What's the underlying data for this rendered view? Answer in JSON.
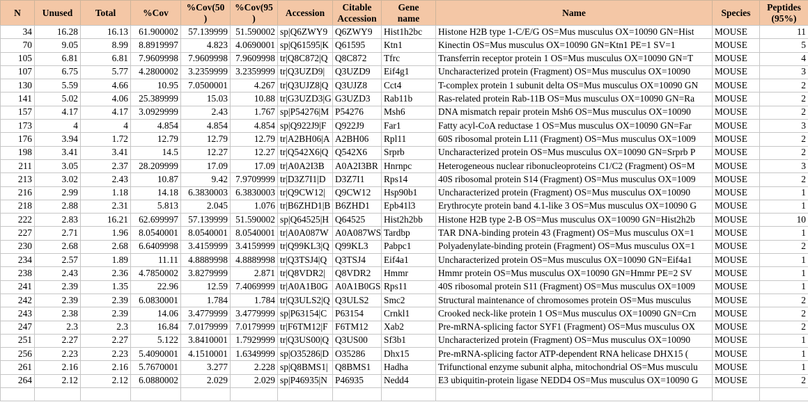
{
  "table": {
    "columns": [
      {
        "key": "n",
        "label": "N",
        "align": "num"
      },
      {
        "key": "unused",
        "label": "Unused",
        "align": "num"
      },
      {
        "key": "total",
        "label": "Total",
        "align": "num"
      },
      {
        "key": "cov",
        "label": "%Cov",
        "align": "num"
      },
      {
        "key": "cov50",
        "label": "%Cov(50\n)",
        "align": "num"
      },
      {
        "key": "cov95",
        "label": "%Cov(95\n)",
        "align": "num"
      },
      {
        "key": "accession",
        "label": "Accession",
        "align": "txt"
      },
      {
        "key": "citable-accession",
        "label": "Citable\nAccession",
        "align": "txt"
      },
      {
        "key": "gene-name",
        "label": "Gene\nname",
        "align": "txt"
      },
      {
        "key": "name",
        "label": "Name",
        "align": "txt"
      },
      {
        "key": "species",
        "label": "Species",
        "align": "txt"
      },
      {
        "key": "peptides-95",
        "label": "Peptides\n(95%)",
        "align": "num"
      }
    ],
    "rows": [
      [
        "34",
        "16.28",
        "16.13",
        "61.900002",
        "57.139999",
        "51.590002",
        "sp|Q6ZWY9",
        "Q6ZWY9",
        "Hist1h2bc",
        "Histone H2B type 1-C/E/G OS=Mus musculus OX=10090 GN=Hist",
        "MOUSE",
        "11"
      ],
      [
        "70",
        "9.05",
        "8.99",
        "8.8919997",
        "4.823",
        "4.0690001",
        "sp|Q61595|K",
        "Q61595",
        "Ktn1",
        "Kinectin OS=Mus musculus OX=10090 GN=Ktn1 PE=1 SV=1",
        "MOUSE",
        "5"
      ],
      [
        "105",
        "6.81",
        "6.81",
        "7.9609998",
        "7.9609998",
        "7.9609998",
        "tr|Q8C872|Q",
        "Q8C872",
        "Tfrc",
        "Transferrin receptor protein 1 OS=Mus musculus OX=10090 GN=T",
        "MOUSE",
        "4"
      ],
      [
        "107",
        "6.75",
        "5.77",
        "4.2800002",
        "3.2359999",
        "3.2359999",
        "tr|Q3UZD9|",
        "Q3UZD9",
        "Eif4g1",
        "Uncharacterized protein (Fragment) OS=Mus musculus OX=10090",
        "MOUSE",
        "3"
      ],
      [
        "130",
        "5.59",
        "4.66",
        "10.95",
        "7.0500001",
        "4.267",
        "tr|Q3UJZ8|Q",
        "Q3UJZ8",
        "Cct4",
        "T-complex protein 1 subunit delta OS=Mus musculus OX=10090 GN",
        "MOUSE",
        "2"
      ],
      [
        "141",
        "5.02",
        "4.06",
        "25.389999",
        "15.03",
        "10.88",
        "tr|G3UZD3|G",
        "G3UZD3",
        "Rab11b",
        "Ras-related protein Rab-11B OS=Mus musculus OX=10090 GN=Ra",
        "MOUSE",
        "2"
      ],
      [
        "157",
        "4.17",
        "4.17",
        "3.0929999",
        "2.43",
        "1.767",
        "sp|P54276|M",
        "P54276",
        "Msh6",
        "DNA mismatch repair protein Msh6 OS=Mus musculus OX=10090",
        "MOUSE",
        "2"
      ],
      [
        "173",
        "4",
        "4",
        "4.854",
        "4.854",
        "4.854",
        "sp|Q922J9|F",
        "Q922J9",
        "Far1",
        "Fatty acyl-CoA reductase 1 OS=Mus musculus OX=10090 GN=Far",
        "MOUSE",
        "3"
      ],
      [
        "176",
        "3.94",
        "1.72",
        "12.79",
        "12.79",
        "12.79",
        "tr|A2BH06|A",
        "A2BH06",
        "Rpl11",
        "60S ribosomal protein L11 (Fragment) OS=Mus musculus OX=1009",
        "MOUSE",
        "2"
      ],
      [
        "198",
        "3.41",
        "3.41",
        "14.5",
        "12.27",
        "12.27",
        "tr|Q542X6|Q",
        "Q542X6",
        "Srprb",
        "Uncharacterized protein OS=Mus musculus OX=10090 GN=Srprb P",
        "MOUSE",
        "2"
      ],
      [
        "211",
        "3.05",
        "2.37",
        "28.209999",
        "17.09",
        "17.09",
        "tr|A0A2I3B",
        "A0A2I3BR",
        "Hnrnpc",
        "Heterogeneous nuclear ribonucleoproteins C1/C2 (Fragment) OS=M",
        "MOUSE",
        "3"
      ],
      [
        "213",
        "3.02",
        "2.43",
        "10.87",
        "9.42",
        "7.9709999",
        "tr|D3Z7I1|D",
        "D3Z7I1",
        "Rps14",
        "40S ribosomal protein S14 (Fragment) OS=Mus musculus OX=1009",
        "MOUSE",
        "2"
      ],
      [
        "216",
        "2.99",
        "1.18",
        "14.18",
        "6.3830003",
        "6.3830003",
        "tr|Q9CW12|",
        "Q9CW12",
        "Hsp90b1",
        "Uncharacterized protein (Fragment) OS=Mus musculus OX=10090",
        "MOUSE",
        "1"
      ],
      [
        "218",
        "2.88",
        "2.31",
        "5.813",
        "2.045",
        "1.076",
        "tr|B6ZHD1|B",
        "B6ZHD1",
        "Epb41l3",
        "Erythrocyte protein band 4.1-like 3 OS=Mus musculus OX=10090 G",
        "MOUSE",
        "1"
      ],
      [
        "222",
        "2.83",
        "16.21",
        "62.699997",
        "57.139999",
        "51.590002",
        "sp|Q64525|H",
        "Q64525",
        "Hist2h2bb",
        "Histone H2B type 2-B OS=Mus musculus OX=10090 GN=Hist2h2b",
        "MOUSE",
        "10"
      ],
      [
        "227",
        "2.71",
        "1.96",
        "8.0540001",
        "8.0540001",
        "8.0540001",
        "tr|A0A087W",
        "A0A087WS",
        "Tardbp",
        "TAR DNA-binding protein 43 (Fragment) OS=Mus musculus OX=1",
        "MOUSE",
        "1"
      ],
      [
        "230",
        "2.68",
        "2.68",
        "6.6409998",
        "3.4159999",
        "3.4159999",
        "tr|Q99KL3|Q",
        "Q99KL3",
        "Pabpc1",
        "Polyadenylate-binding protein (Fragment) OS=Mus musculus OX=1",
        "MOUSE",
        "2"
      ],
      [
        "234",
        "2.57",
        "1.89",
        "11.11",
        "4.8889998",
        "4.8889998",
        "tr|Q3TSJ4|Q",
        "Q3TSJ4",
        "Eif4a1",
        "Uncharacterized protein OS=Mus musculus OX=10090 GN=Eif4a1",
        "MOUSE",
        "1"
      ],
      [
        "238",
        "2.43",
        "2.36",
        "4.7850002",
        "3.8279999",
        "2.871",
        "tr|Q8VDR2|",
        "Q8VDR2",
        "Hmmr",
        "Hmmr protein OS=Mus musculus OX=10090 GN=Hmmr PE=2 SV",
        "MOUSE",
        "1"
      ],
      [
        "241",
        "2.39",
        "1.35",
        "22.96",
        "12.59",
        "7.4069999",
        "tr|A0A1B0G",
        "A0A1B0GS",
        "Rps11",
        "40S ribosomal protein S11 (Fragment) OS=Mus musculus OX=1009",
        "MOUSE",
        "1"
      ],
      [
        "242",
        "2.39",
        "2.39",
        "6.0830001",
        "1.784",
        "1.784",
        "tr|Q3ULS2|Q",
        "Q3ULS2",
        "Smc2",
        "Structural maintenance of chromosomes protein OS=Mus musculus",
        "MOUSE",
        "2"
      ],
      [
        "243",
        "2.38",
        "2.39",
        "14.06",
        "3.4779999",
        "3.4779999",
        "sp|P63154|C",
        "P63154",
        "Crnkl1",
        "Crooked neck-like protein 1 OS=Mus musculus OX=10090 GN=Crn",
        "MOUSE",
        "2"
      ],
      [
        "247",
        "2.3",
        "2.3",
        "16.84",
        "7.0179999",
        "7.0179999",
        "tr|F6TM12|F",
        "F6TM12",
        "Xab2",
        "Pre-mRNA-splicing factor SYF1 (Fragment) OS=Mus musculus OX",
        "MOUSE",
        "2"
      ],
      [
        "251",
        "2.27",
        "2.27",
        "5.122",
        "3.8410001",
        "1.7929999",
        "tr|Q3US00|Q",
        "Q3US00",
        "Sf3b1",
        "Uncharacterized protein (Fragment) OS=Mus musculus OX=10090",
        "MOUSE",
        "1"
      ],
      [
        "256",
        "2.23",
        "2.23",
        "5.4090001",
        "4.1510001",
        "1.6349999",
        "sp|O35286|D",
        "O35286",
        "Dhx15",
        "Pre-mRNA-splicing factor ATP-dependent RNA helicase DHX15 (",
        "MOUSE",
        "1"
      ],
      [
        "261",
        "2.16",
        "2.16",
        "5.7670001",
        "3.277",
        "2.228",
        "sp|Q8BMS1|",
        "Q8BMS1",
        "Hadha",
        "Trifunctional enzyme subunit alpha, mitochondrial OS=Mus musculu",
        "MOUSE",
        "1"
      ],
      [
        "264",
        "2.12",
        "2.12",
        "6.0880002",
        "2.029",
        "2.029",
        "sp|P46935|N",
        "P46935",
        "Nedd4",
        "E3 ubiquitin-protein ligase NEDD4 OS=Mus musculus OX=10090 G",
        "MOUSE",
        "2"
      ]
    ]
  },
  "colors": {
    "header_bg": "#f4c7a6",
    "grid": "#c6c6c6",
    "text": "#000000"
  }
}
